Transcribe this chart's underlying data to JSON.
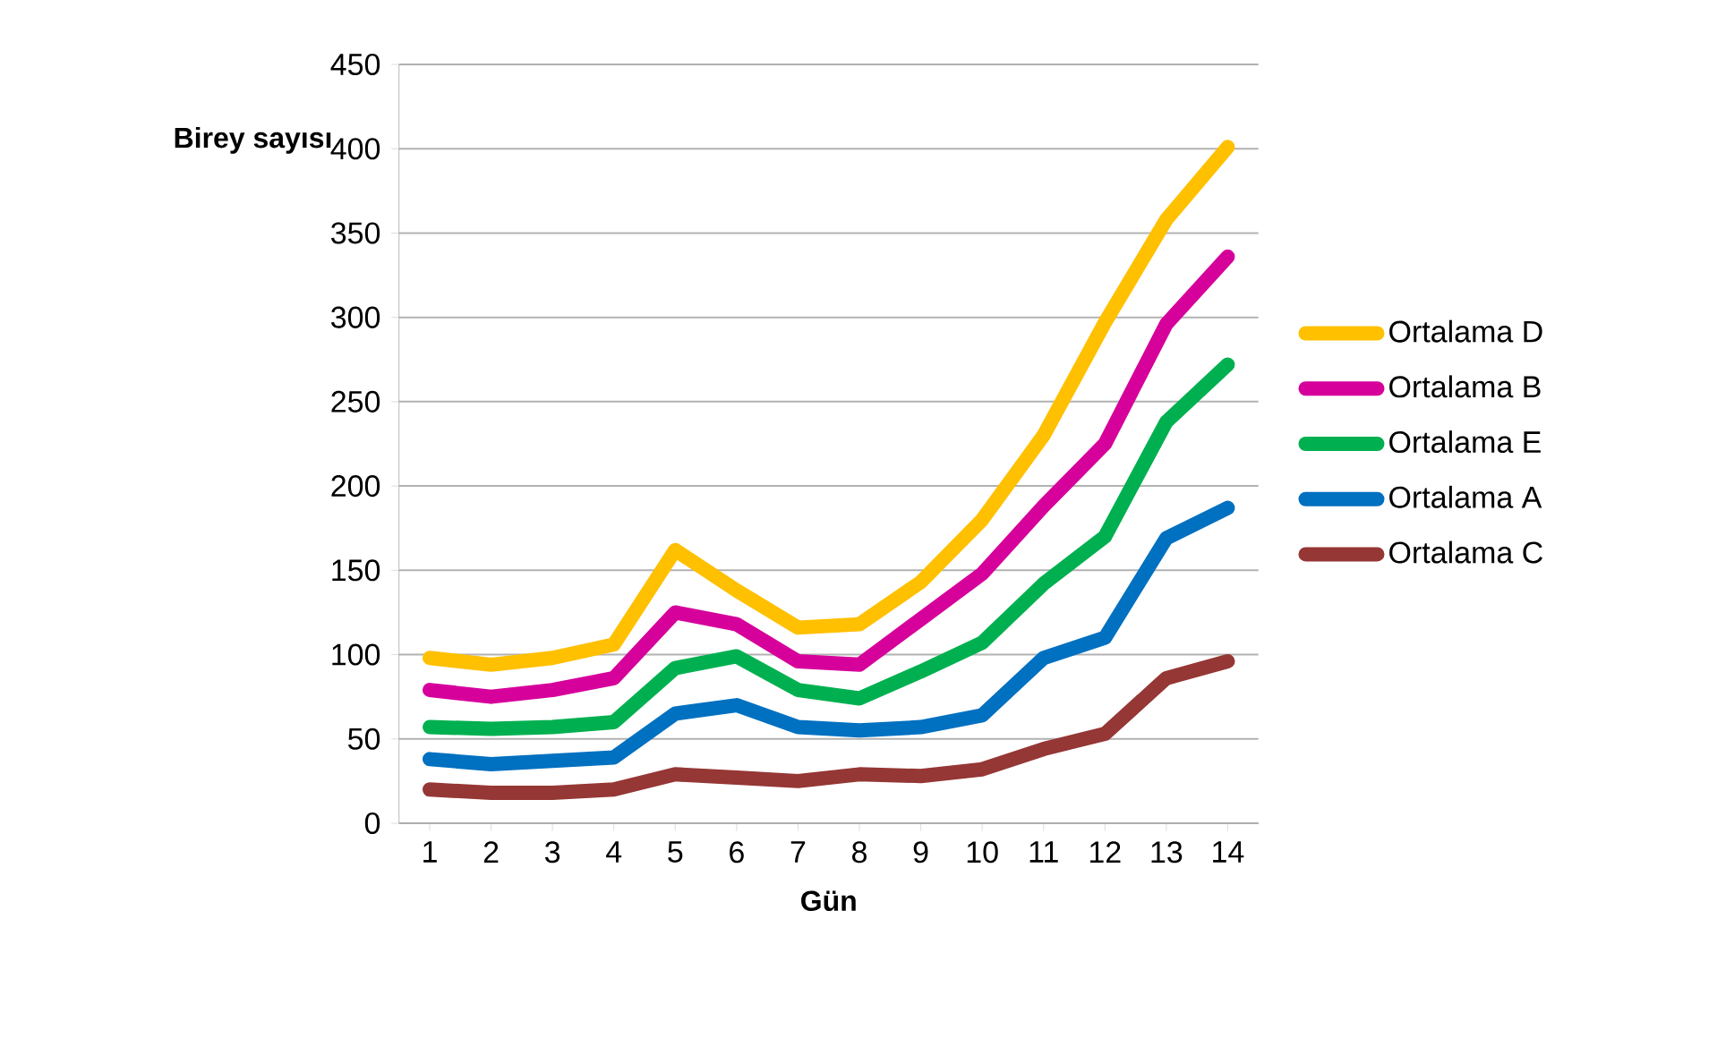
{
  "chart_data": {
    "type": "line",
    "xlabel": "Gün",
    "ylabel": "Birey sayısı",
    "categories": [
      "1",
      "2",
      "3",
      "4",
      "5",
      "6",
      "7",
      "8",
      "9",
      "10",
      "11",
      "12",
      "13",
      "14"
    ],
    "ylim": [
      0,
      450
    ],
    "yticks": [
      0,
      50,
      100,
      150,
      200,
      250,
      300,
      350,
      400,
      450
    ],
    "grid": "y",
    "legend": "right",
    "marker": "none",
    "line_style": "solid",
    "series": [
      {
        "name": "Ortalama D",
        "color": "#ffc000",
        "values": [
          98,
          94,
          98,
          106,
          162,
          138,
          116,
          118,
          143,
          180,
          230,
          297,
          358,
          401
        ]
      },
      {
        "name": "Ortalama B",
        "color": "#d6009b",
        "values": [
          79,
          75,
          79,
          86,
          125,
          118,
          96,
          94,
          121,
          148,
          188,
          225,
          296,
          336
        ]
      },
      {
        "name": "Ortalama E",
        "color": "#00b050",
        "values": [
          57,
          56,
          57,
          60,
          92,
          99,
          79,
          74,
          90,
          107,
          142,
          170,
          238,
          272
        ]
      },
      {
        "name": "Ortalama A",
        "color": "#0070c0",
        "values": [
          38,
          35,
          37,
          39,
          65,
          70,
          57,
          55,
          57,
          64,
          98,
          110,
          169,
          187
        ]
      },
      {
        "name": "Ortalama C",
        "color": "#953735",
        "values": [
          20,
          18,
          18,
          20,
          29,
          27,
          25,
          29,
          28,
          32,
          44,
          53,
          86,
          96
        ]
      }
    ]
  }
}
